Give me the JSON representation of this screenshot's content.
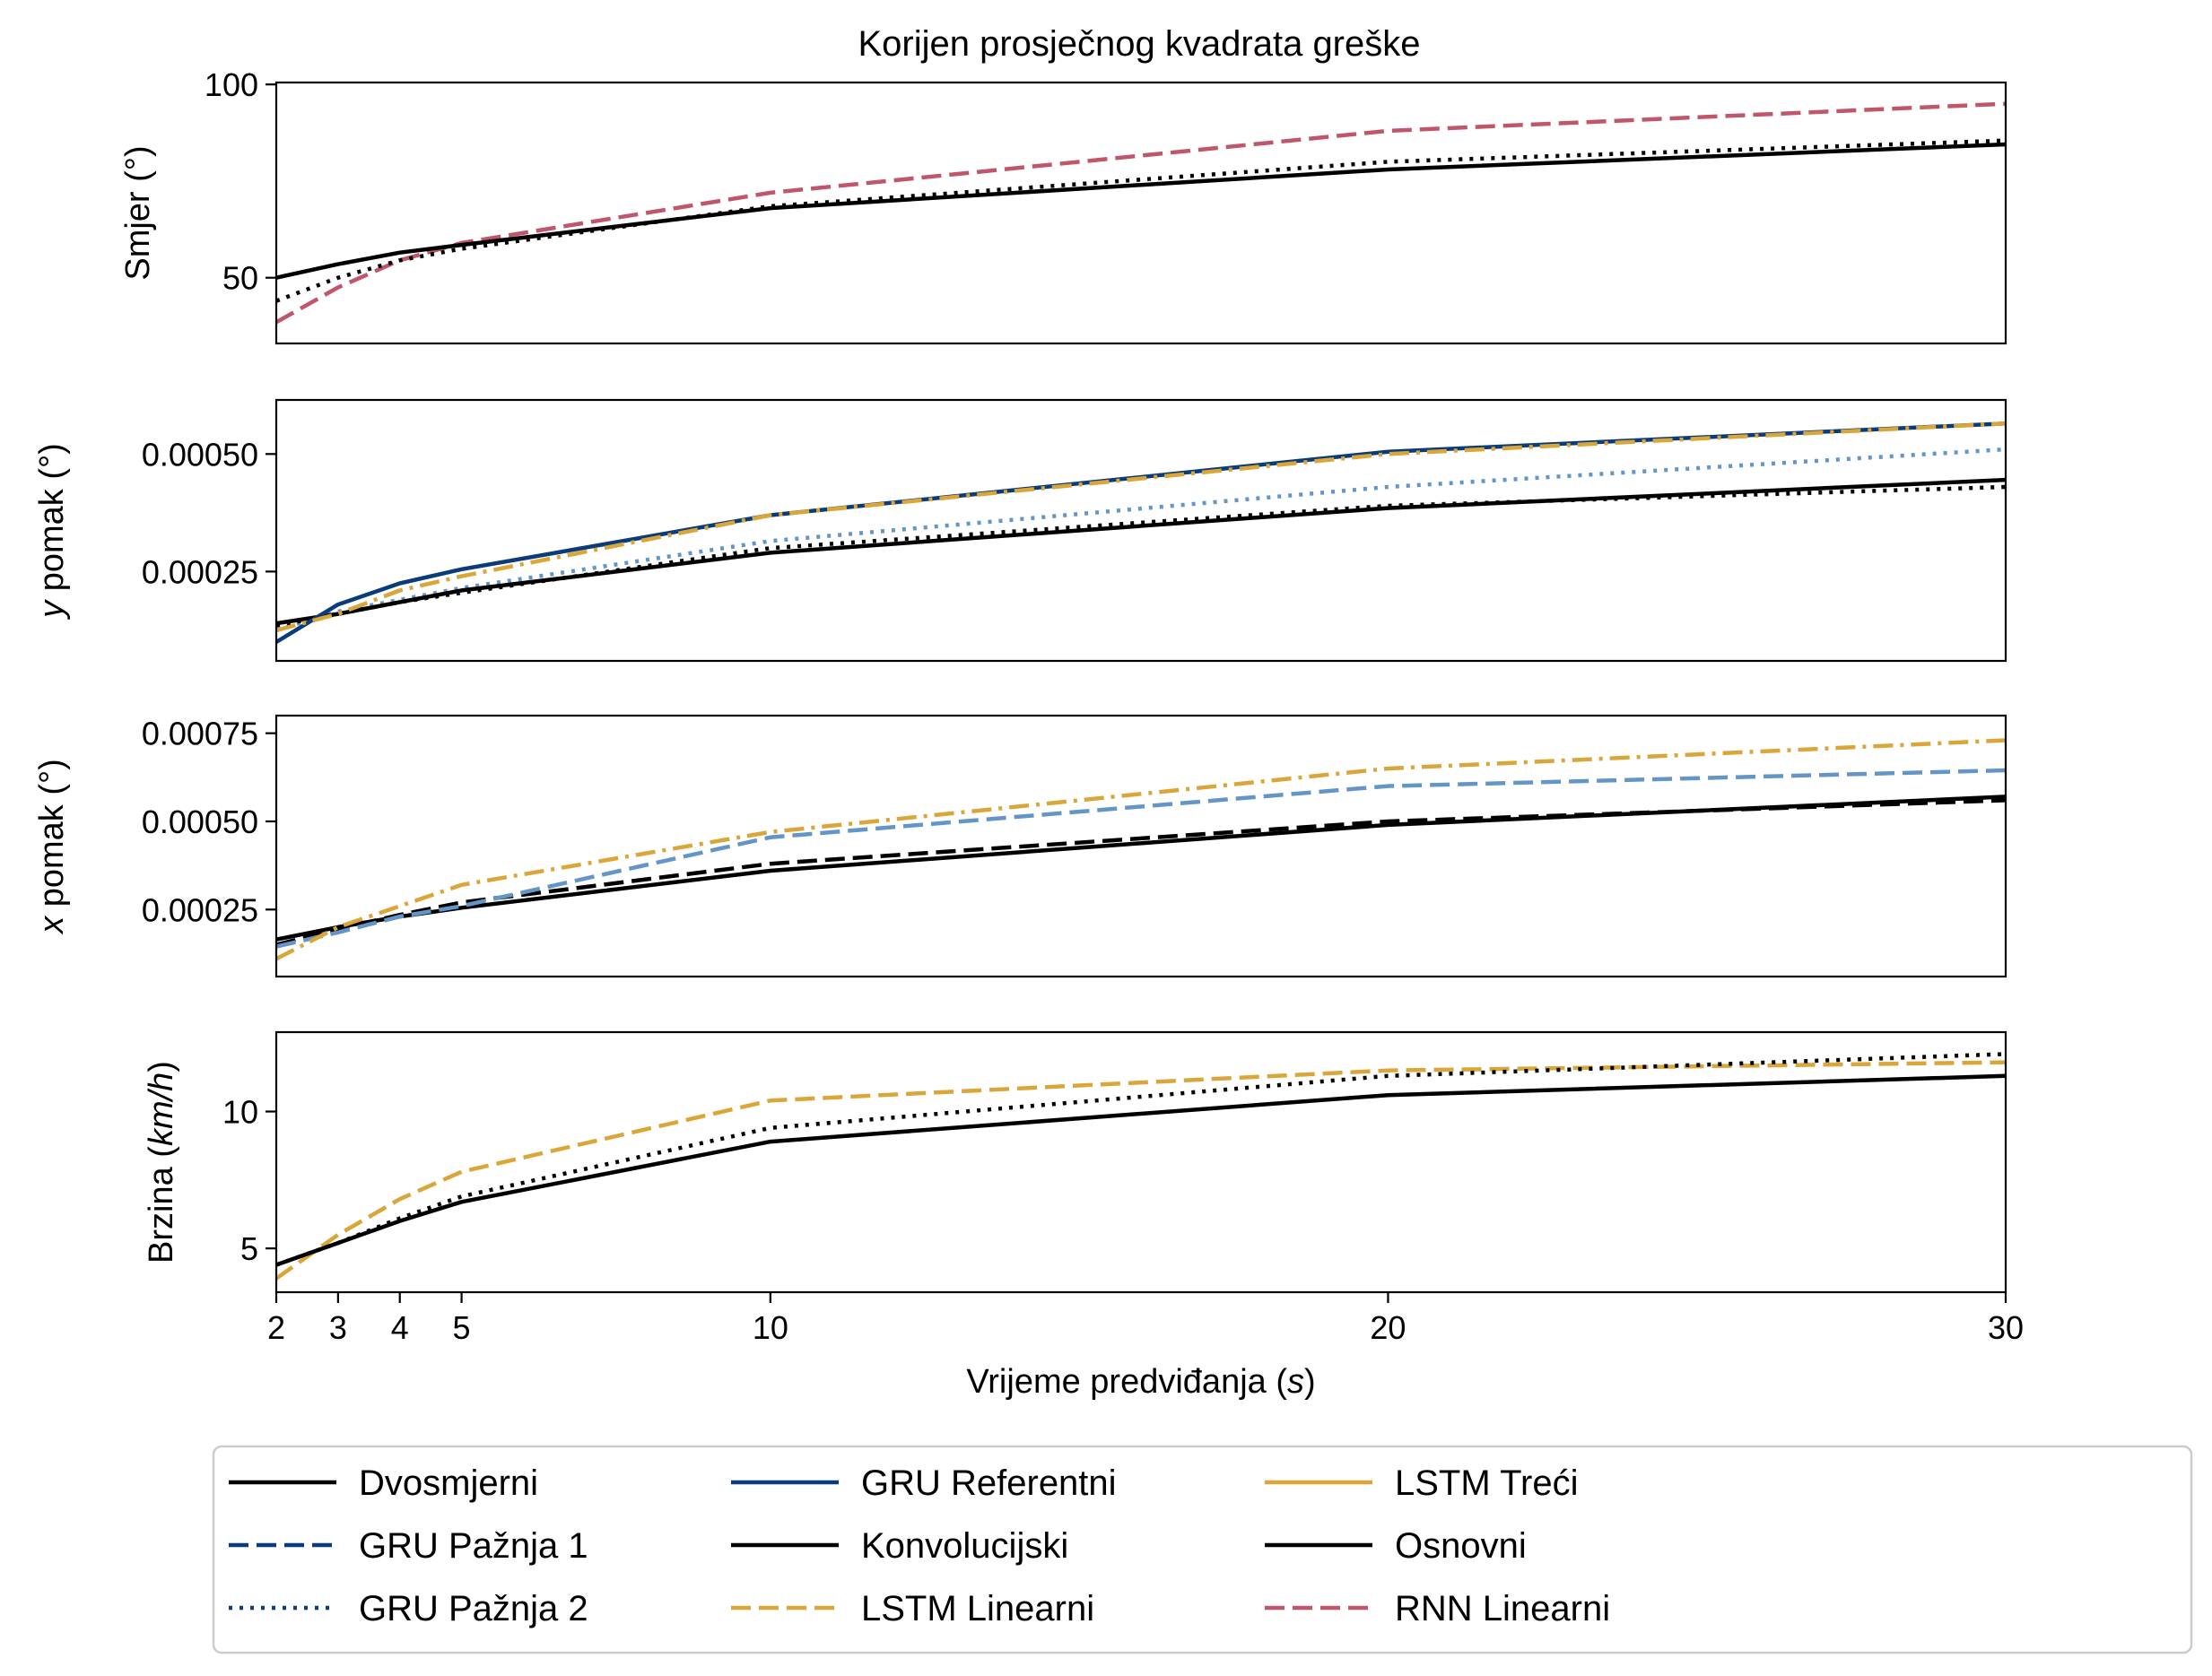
{
  "chart_data": {
    "type": "line",
    "title": "Korijen prosječnog kvadrata greške",
    "xlabel": "Vrijeme predviđanja (",
    "xlabel_unit": "s",
    "xlabel_suffix": ")",
    "x": [
      2,
      3,
      4,
      5,
      10,
      20,
      30
    ],
    "xticks": [
      "2",
      "3",
      "4",
      "5",
      "10",
      "20",
      "30"
    ],
    "xlim": [
      2,
      30
    ],
    "legend_position": "bottom, outside, 4 columns",
    "legend": [
      {
        "name": "Dvosmjerni",
        "color": "#000000",
        "dash": "solid"
      },
      {
        "name": "GRU Pažnja 1",
        "color": "#0b3c7a",
        "dash": "dashed"
      },
      {
        "name": "GRU Pažnja 2",
        "color": "#0b3c7a",
        "dash": "dotted"
      },
      {
        "name": "GRU Referentni",
        "color": "#0b3c7a",
        "dash": "solid"
      },
      {
        "name": "Konvolucijski",
        "color": "#000000",
        "dash": "solid"
      },
      {
        "name": "LSTM Linearni",
        "color": "#daa63a",
        "dash": "dashed"
      },
      {
        "name": "LSTM Treći",
        "color": "#daa63a",
        "dash": "solid"
      },
      {
        "name": "Osnovni",
        "color": "#000000",
        "dash": "solid"
      },
      {
        "name": "RNN Linearni",
        "color": "#c0566a",
        "dash": "dashed"
      }
    ],
    "panels": [
      {
        "ylabel": "Smjer (°)",
        "ylabel_var": "",
        "ylabel_rest": "Smjer (°)",
        "ylim": [
          33,
          100.5
        ],
        "yticks": [
          50,
          100
        ],
        "ytick_labels": [
          "50",
          "100"
        ],
        "series": [
          {
            "color": "#c0566a",
            "dash": "dashed",
            "values": [
              38.5,
              47.5,
              54.5,
              59,
              72,
              88,
              95
            ]
          },
          {
            "color": "#000000",
            "dash": "dotted",
            "values": [
              44,
              50,
              54.5,
              57.5,
              68.5,
              80,
              85.5
            ]
          },
          {
            "color": "#000000",
            "dash": "solid",
            "values": [
              50,
              53.5,
              56.5,
              58.5,
              68,
              78,
              84.5
            ]
          }
        ]
      },
      {
        "ylabel": "y pomak (°)",
        "ylabel_var": "y",
        "ylabel_rest": " pomak (°)",
        "ylim": [
          6e-05,
          0.000615
        ],
        "yticks": [
          0.00025,
          0.0005
        ],
        "ytick_labels": [
          "0.00025",
          "0.00050"
        ],
        "series": [
          {
            "color": "#6495c7",
            "dash": "dotted",
            "values": [
              0.000125,
              0.000165,
              0.00019,
              0.000215,
              0.000315,
              0.00043,
              0.00051
            ]
          },
          {
            "color": "#000000",
            "dash": "dotted",
            "values": [
              0.000135,
              0.00016,
              0.000185,
              0.000205,
              0.0003,
              0.00039,
              0.00043
            ]
          },
          {
            "color": "#000000",
            "dash": "solid",
            "values": [
              0.00014,
              0.00016,
              0.000185,
              0.00021,
              0.00029,
              0.000385,
              0.000445
            ]
          },
          {
            "color": "#0b3c7a",
            "dash": "solid",
            "values": [
              0.0001,
              0.00018,
              0.000225,
              0.000255,
              0.00037,
              0.000505,
              0.000565
            ]
          },
          {
            "color": "#daa63a",
            "dash": "dashdot",
            "values": [
              0.000125,
              0.00016,
              0.00021,
              0.00024,
              0.00037,
              0.0005,
              0.000565
            ]
          }
        ]
      },
      {
        "ylabel": "x pomak (°)",
        "ylabel_var": "x",
        "ylabel_rest": " pomak (°)",
        "ylim": [
          6e-05,
          0.0008
        ],
        "yticks": [
          0.00025,
          0.0005,
          0.00075
        ],
        "ytick_labels": [
          "0.00025",
          "0.00050",
          "0.00075"
        ],
        "series": [
          {
            "color": "#000000",
            "dash": "dashed",
            "values": [
              0.00015,
              0.000195,
              0.000235,
              0.00027,
              0.00038,
              0.0005,
              0.00056
            ]
          },
          {
            "color": "#000000",
            "dash": "solid",
            "values": [
              0.000165,
              0.0002,
              0.00023,
              0.000255,
              0.00036,
              0.00049,
              0.00057
            ]
          },
          {
            "color": "#6495c7",
            "dash": "dashed",
            "values": [
              0.000145,
              0.000185,
              0.00023,
              0.00026,
              0.000455,
              0.0006,
              0.000645
            ]
          },
          {
            "color": "#daa63a",
            "dash": "dashdot",
            "values": [
              0.00011,
              0.0002,
              0.00026,
              0.00032,
              0.00047,
              0.00065,
              0.00073
            ]
          }
        ]
      },
      {
        "ylabel": "Brzina (km/h)",
        "ylabel_var": "",
        "ylabel_rest": "Brzina (km/h)",
        "ylim": [
          3.4,
          12.9
        ],
        "yticks": [
          5,
          10
        ],
        "ytick_labels": [
          "5",
          "10"
        ],
        "series": [
          {
            "color": "#daa63a",
            "dash": "dashed",
            "values": [
              3.9,
              5.5,
              6.8,
              7.8,
              10.4,
              11.5,
              11.8
            ]
          },
          {
            "color": "#000000",
            "dash": "dotted",
            "values": [
              4.4,
              5.2,
              6.1,
              6.9,
              9.4,
              11.3,
              12.1
            ]
          },
          {
            "color": "#000000",
            "dash": "solid",
            "values": [
              4.4,
              5.2,
              6.0,
              6.7,
              8.9,
              10.6,
              11.3
            ]
          }
        ]
      }
    ]
  }
}
